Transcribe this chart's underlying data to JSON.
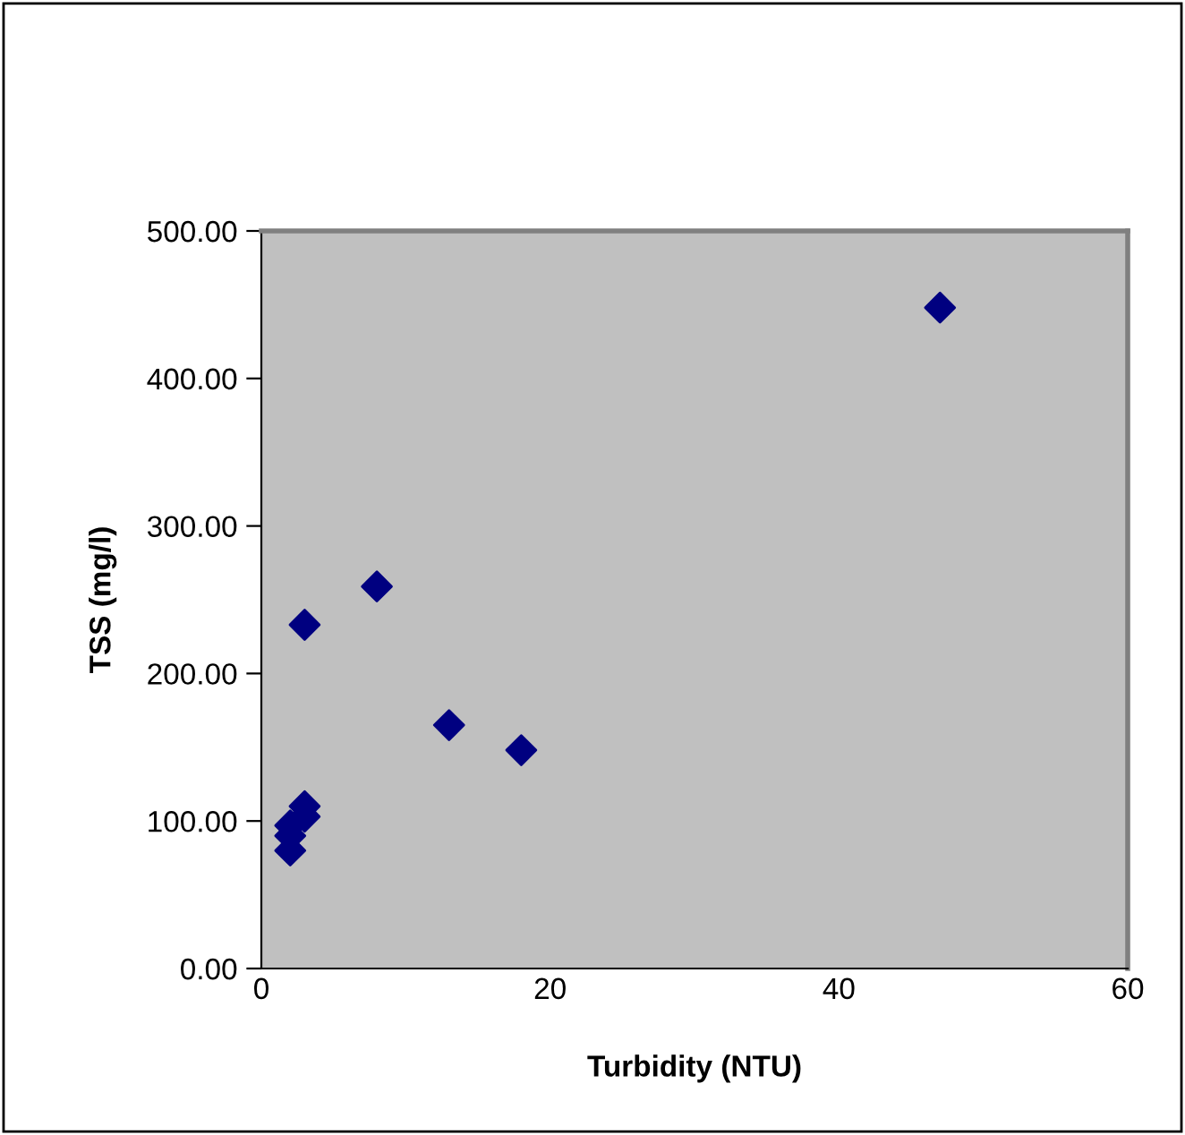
{
  "chart_data": {
    "type": "scatter",
    "xlabel": "Turbidity (NTU)",
    "ylabel": "TSS (mg/l)",
    "x": [
      47,
      8,
      3,
      13,
      18,
      3,
      3,
      2,
      2,
      2
    ],
    "series": [
      {
        "color": "#000080",
        "values": [
          448,
          259,
          233,
          165,
          148,
          110,
          103,
          97,
          90,
          80
        ]
      }
    ],
    "marker": "diamond",
    "grid": false,
    "legend": false,
    "xlim": [
      0,
      60
    ],
    "xticks": [
      0,
      20,
      40,
      60
    ],
    "ylim": [
      0,
      500
    ],
    "yticks": [
      {
        "value": 0,
        "label": "0.00"
      },
      {
        "value": 100,
        "label": "100.00"
      },
      {
        "value": 200,
        "label": "200.00"
      },
      {
        "value": 300,
        "label": "300.00"
      },
      {
        "value": 400,
        "label": "400.00"
      },
      {
        "value": 500,
        "label": "500.00"
      }
    ]
  }
}
